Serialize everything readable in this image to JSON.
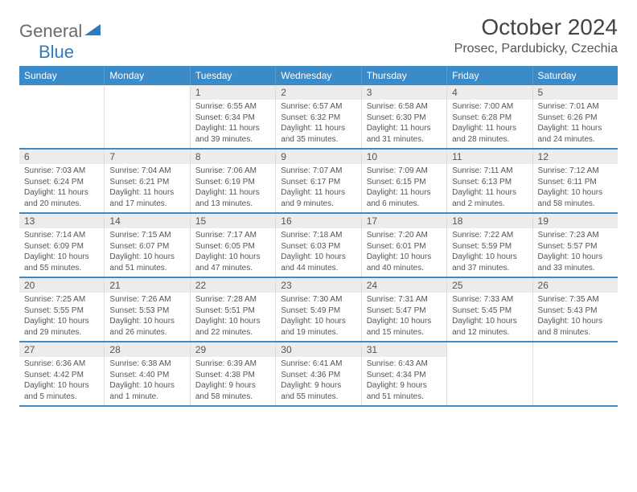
{
  "brand": {
    "part1": "General",
    "part2": "Blue"
  },
  "title": "October 2024",
  "location": "Prosec, Pardubicky, Czechia",
  "colors": {
    "header_bg": "#3b8bc8",
    "header_text": "#ffffff",
    "daynum_bg": "#ececec",
    "border": "#3b8bc8",
    "text": "#555555",
    "logo_gray": "#6a6a6a",
    "logo_blue": "#2f7bbf"
  },
  "day_names": [
    "Sunday",
    "Monday",
    "Tuesday",
    "Wednesday",
    "Thursday",
    "Friday",
    "Saturday"
  ],
  "weeks": [
    [
      {
        "n": "",
        "sr": "",
        "ss": "",
        "dl": ""
      },
      {
        "n": "",
        "sr": "",
        "ss": "",
        "dl": ""
      },
      {
        "n": "1",
        "sr": "Sunrise: 6:55 AM",
        "ss": "Sunset: 6:34 PM",
        "dl": "Daylight: 11 hours and 39 minutes."
      },
      {
        "n": "2",
        "sr": "Sunrise: 6:57 AM",
        "ss": "Sunset: 6:32 PM",
        "dl": "Daylight: 11 hours and 35 minutes."
      },
      {
        "n": "3",
        "sr": "Sunrise: 6:58 AM",
        "ss": "Sunset: 6:30 PM",
        "dl": "Daylight: 11 hours and 31 minutes."
      },
      {
        "n": "4",
        "sr": "Sunrise: 7:00 AM",
        "ss": "Sunset: 6:28 PM",
        "dl": "Daylight: 11 hours and 28 minutes."
      },
      {
        "n": "5",
        "sr": "Sunrise: 7:01 AM",
        "ss": "Sunset: 6:26 PM",
        "dl": "Daylight: 11 hours and 24 minutes."
      }
    ],
    [
      {
        "n": "6",
        "sr": "Sunrise: 7:03 AM",
        "ss": "Sunset: 6:24 PM",
        "dl": "Daylight: 11 hours and 20 minutes."
      },
      {
        "n": "7",
        "sr": "Sunrise: 7:04 AM",
        "ss": "Sunset: 6:21 PM",
        "dl": "Daylight: 11 hours and 17 minutes."
      },
      {
        "n": "8",
        "sr": "Sunrise: 7:06 AM",
        "ss": "Sunset: 6:19 PM",
        "dl": "Daylight: 11 hours and 13 minutes."
      },
      {
        "n": "9",
        "sr": "Sunrise: 7:07 AM",
        "ss": "Sunset: 6:17 PM",
        "dl": "Daylight: 11 hours and 9 minutes."
      },
      {
        "n": "10",
        "sr": "Sunrise: 7:09 AM",
        "ss": "Sunset: 6:15 PM",
        "dl": "Daylight: 11 hours and 6 minutes."
      },
      {
        "n": "11",
        "sr": "Sunrise: 7:11 AM",
        "ss": "Sunset: 6:13 PM",
        "dl": "Daylight: 11 hours and 2 minutes."
      },
      {
        "n": "12",
        "sr": "Sunrise: 7:12 AM",
        "ss": "Sunset: 6:11 PM",
        "dl": "Daylight: 10 hours and 58 minutes."
      }
    ],
    [
      {
        "n": "13",
        "sr": "Sunrise: 7:14 AM",
        "ss": "Sunset: 6:09 PM",
        "dl": "Daylight: 10 hours and 55 minutes."
      },
      {
        "n": "14",
        "sr": "Sunrise: 7:15 AM",
        "ss": "Sunset: 6:07 PM",
        "dl": "Daylight: 10 hours and 51 minutes."
      },
      {
        "n": "15",
        "sr": "Sunrise: 7:17 AM",
        "ss": "Sunset: 6:05 PM",
        "dl": "Daylight: 10 hours and 47 minutes."
      },
      {
        "n": "16",
        "sr": "Sunrise: 7:18 AM",
        "ss": "Sunset: 6:03 PM",
        "dl": "Daylight: 10 hours and 44 minutes."
      },
      {
        "n": "17",
        "sr": "Sunrise: 7:20 AM",
        "ss": "Sunset: 6:01 PM",
        "dl": "Daylight: 10 hours and 40 minutes."
      },
      {
        "n": "18",
        "sr": "Sunrise: 7:22 AM",
        "ss": "Sunset: 5:59 PM",
        "dl": "Daylight: 10 hours and 37 minutes."
      },
      {
        "n": "19",
        "sr": "Sunrise: 7:23 AM",
        "ss": "Sunset: 5:57 PM",
        "dl": "Daylight: 10 hours and 33 minutes."
      }
    ],
    [
      {
        "n": "20",
        "sr": "Sunrise: 7:25 AM",
        "ss": "Sunset: 5:55 PM",
        "dl": "Daylight: 10 hours and 29 minutes."
      },
      {
        "n": "21",
        "sr": "Sunrise: 7:26 AM",
        "ss": "Sunset: 5:53 PM",
        "dl": "Daylight: 10 hours and 26 minutes."
      },
      {
        "n": "22",
        "sr": "Sunrise: 7:28 AM",
        "ss": "Sunset: 5:51 PM",
        "dl": "Daylight: 10 hours and 22 minutes."
      },
      {
        "n": "23",
        "sr": "Sunrise: 7:30 AM",
        "ss": "Sunset: 5:49 PM",
        "dl": "Daylight: 10 hours and 19 minutes."
      },
      {
        "n": "24",
        "sr": "Sunrise: 7:31 AM",
        "ss": "Sunset: 5:47 PM",
        "dl": "Daylight: 10 hours and 15 minutes."
      },
      {
        "n": "25",
        "sr": "Sunrise: 7:33 AM",
        "ss": "Sunset: 5:45 PM",
        "dl": "Daylight: 10 hours and 12 minutes."
      },
      {
        "n": "26",
        "sr": "Sunrise: 7:35 AM",
        "ss": "Sunset: 5:43 PM",
        "dl": "Daylight: 10 hours and 8 minutes."
      }
    ],
    [
      {
        "n": "27",
        "sr": "Sunrise: 6:36 AM",
        "ss": "Sunset: 4:42 PM",
        "dl": "Daylight: 10 hours and 5 minutes."
      },
      {
        "n": "28",
        "sr": "Sunrise: 6:38 AM",
        "ss": "Sunset: 4:40 PM",
        "dl": "Daylight: 10 hours and 1 minute."
      },
      {
        "n": "29",
        "sr": "Sunrise: 6:39 AM",
        "ss": "Sunset: 4:38 PM",
        "dl": "Daylight: 9 hours and 58 minutes."
      },
      {
        "n": "30",
        "sr": "Sunrise: 6:41 AM",
        "ss": "Sunset: 4:36 PM",
        "dl": "Daylight: 9 hours and 55 minutes."
      },
      {
        "n": "31",
        "sr": "Sunrise: 6:43 AM",
        "ss": "Sunset: 4:34 PM",
        "dl": "Daylight: 9 hours and 51 minutes."
      },
      {
        "n": "",
        "sr": "",
        "ss": "",
        "dl": ""
      },
      {
        "n": "",
        "sr": "",
        "ss": "",
        "dl": ""
      }
    ]
  ]
}
